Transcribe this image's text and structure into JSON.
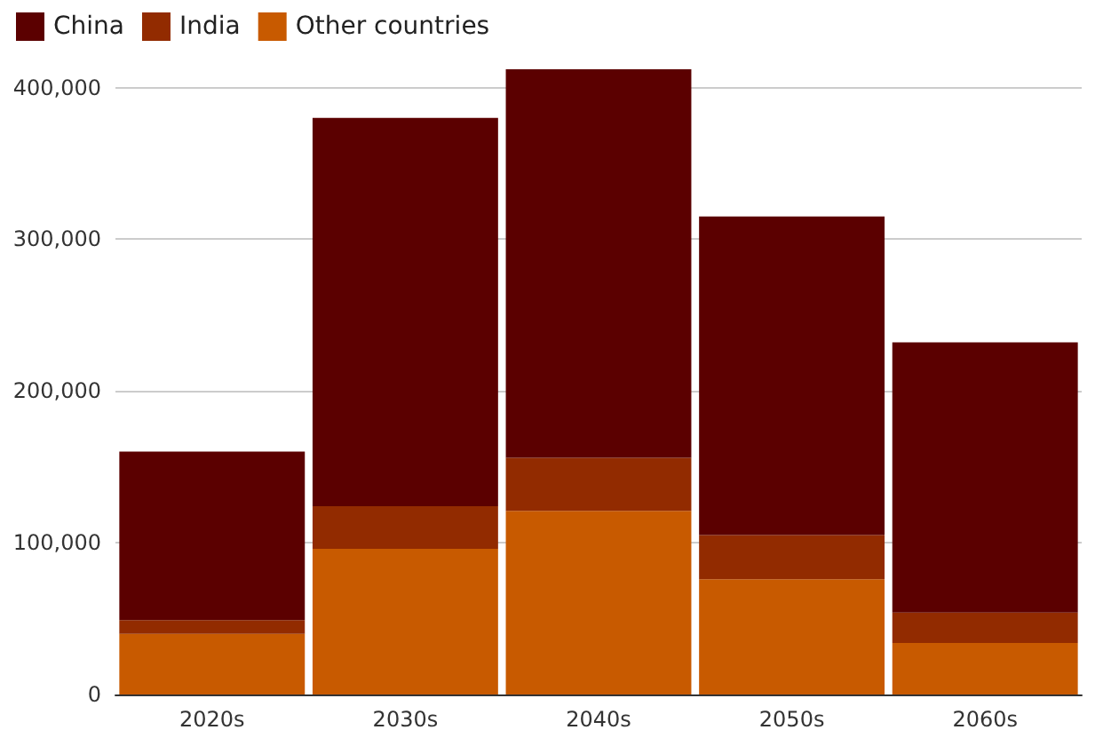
{
  "chart_data": {
    "type": "bar",
    "stacked": true,
    "categories": [
      "2020s",
      "2030s",
      "2040s",
      "2050s",
      "2060s"
    ],
    "series": [
      {
        "name": "Other countries",
        "color": "#c85a00",
        "values": [
          40000,
          96000,
          121000,
          76000,
          34000
        ]
      },
      {
        "name": "India",
        "color": "#922b00",
        "values": [
          9000,
          28000,
          35000,
          29000,
          20000
        ]
      },
      {
        "name": "China",
        "color": "#5b0000",
        "values": [
          111000,
          256000,
          256000,
          210000,
          178000
        ]
      }
    ],
    "ylim": [
      0,
      412000
    ],
    "yticks": [
      0,
      {
        "value": 100000,
        "label": "100,000"
      },
      {
        "value": 200000,
        "label": "200,000"
      },
      {
        "value": 300000,
        "label": "300,000"
      },
      {
        "value": 400000,
        "label": "400,000"
      }
    ],
    "grid": "y",
    "legend": "top left"
  }
}
